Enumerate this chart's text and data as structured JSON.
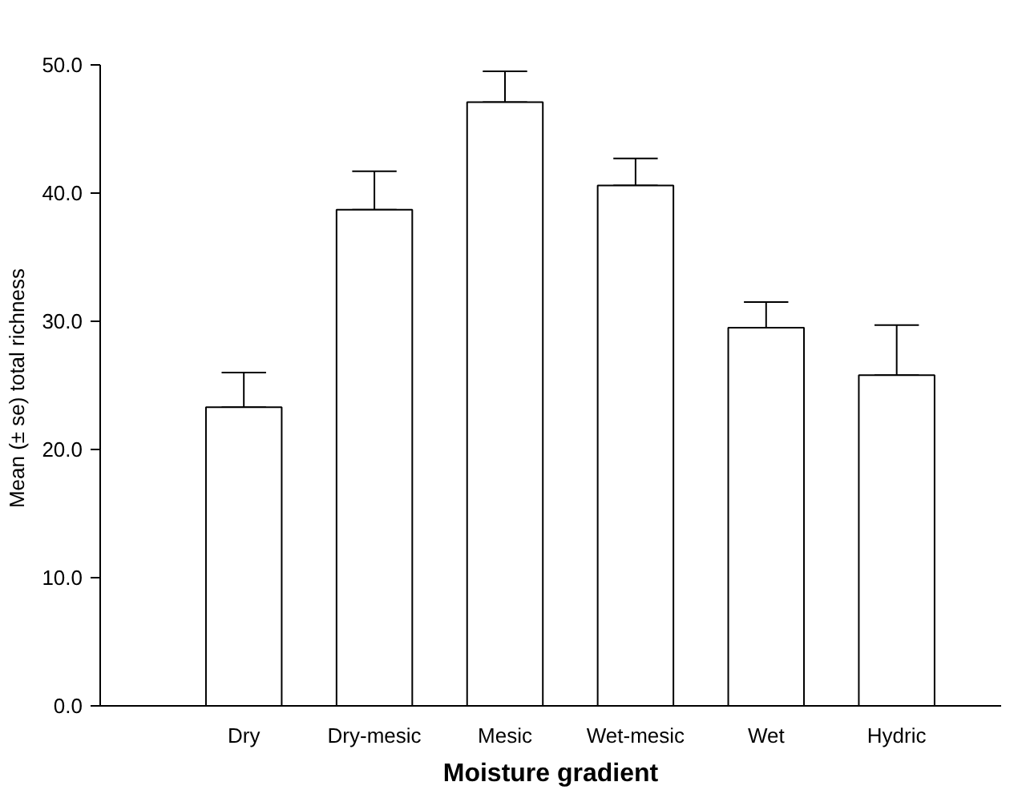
{
  "chart_data": {
    "type": "bar",
    "xlabel": "Moisture gradient",
    "ylabel": "Mean (± se)  total richness",
    "categories": [
      "Dry",
      "Dry-mesic",
      "Mesic",
      "Wet-mesic",
      "Wet",
      "Hydric"
    ],
    "values": [
      23.3,
      38.7,
      47.1,
      40.6,
      29.5,
      25.8
    ],
    "errors": [
      [
        23.3,
        26.0
      ],
      [
        38.7,
        41.7
      ],
      [
        47.1,
        49.5
      ],
      [
        40.6,
        42.7
      ],
      [
        29.5,
        31.5
      ],
      [
        25.8,
        29.7
      ]
    ],
    "color": "#ffffff",
    "ylim": [
      0,
      50
    ],
    "yticks": [
      {
        "value": 0,
        "label": "0.0"
      },
      {
        "value": 10,
        "label": "10.0"
      },
      {
        "value": 20,
        "label": "20.0"
      },
      {
        "value": 30,
        "label": "30.0"
      },
      {
        "value": 40,
        "label": "40.0"
      },
      {
        "value": 50,
        "label": "50.0"
      }
    ],
    "grid": false
  }
}
